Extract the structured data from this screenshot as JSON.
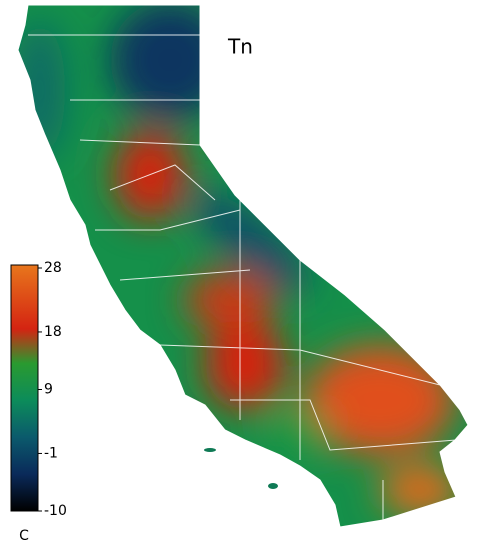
{
  "title": "Tn",
  "colorbar": {
    "range": [
      -10,
      28
    ],
    "ticks": [
      28,
      18,
      9,
      -1,
      -10
    ],
    "unit": "C"
  }
}
